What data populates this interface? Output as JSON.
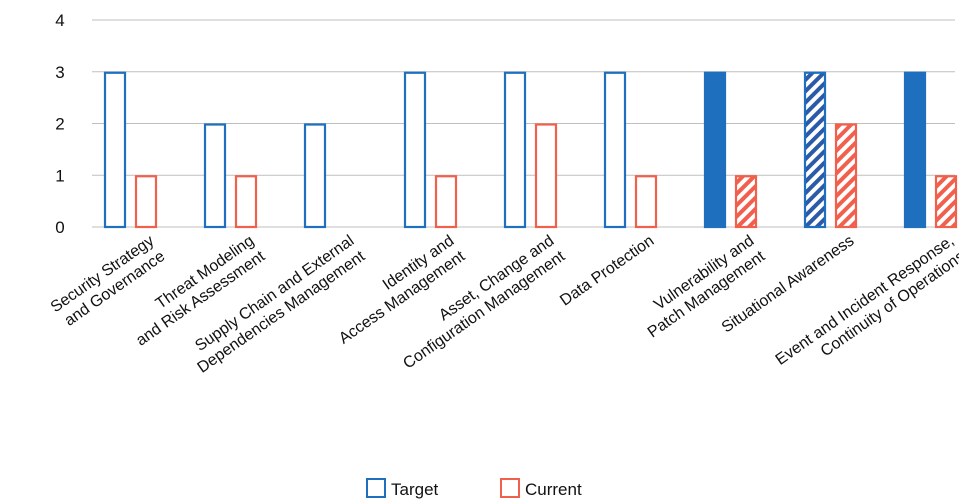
{
  "chart_data": {
    "type": "bar",
    "categories": [
      [
        "Security Strategy",
        "and Governance"
      ],
      [
        "Threat Modeling",
        "and Risk Assessment"
      ],
      [
        "Supply Chain and External",
        "Dependencies Management"
      ],
      [
        "Identity and",
        "Access Management"
      ],
      [
        "Asset, Change and",
        "Configuration Management"
      ],
      [
        "Data Protection"
      ],
      [
        "Vulnerability and",
        "Patch Management"
      ],
      [
        "Situational Awareness"
      ],
      [
        "Event and Incident Response,",
        "Continuity of Operations"
      ]
    ],
    "series": [
      {
        "name": "Target",
        "values": [
          3,
          2,
          2,
          3,
          3,
          3,
          3,
          3,
          3
        ],
        "styles": [
          "outline",
          "outline",
          "outline",
          "outline",
          "outline",
          "outline",
          "solid",
          "hatched",
          "solid"
        ]
      },
      {
        "name": "Current",
        "values": [
          1,
          1,
          0,
          1,
          2,
          1,
          1,
          2,
          1
        ],
        "styles": [
          "outline",
          "outline",
          "outline",
          "outline",
          "outline",
          "outline",
          "hatched",
          "hatched",
          "hatched"
        ]
      }
    ],
    "ylim": [
      0,
      4
    ],
    "yticks": [
      0,
      1,
      2,
      3,
      4
    ],
    "grid": true,
    "legend_position": "bottom",
    "colors": {
      "Target": "#1f6fbf",
      "Current": "#f0604d",
      "grid": "#bfbfbf"
    }
  }
}
